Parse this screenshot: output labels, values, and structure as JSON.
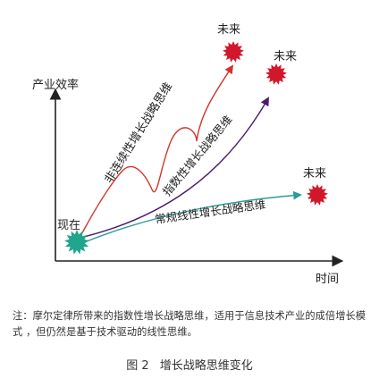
{
  "axes": {
    "y_label": "产业效率",
    "x_label": "时间"
  },
  "start_label": "现在",
  "futures": {
    "top": "未来",
    "middle": "未来",
    "bottom": "未来"
  },
  "curves": {
    "non_continuous": "非连续性增长战略思维",
    "exponential": "指数性增长战略思维",
    "linear": "常规线性增长战略思维"
  },
  "colors": {
    "non_continuous": "#d2342b",
    "exponential": "#4b1a6e",
    "linear": "#2b9a9a",
    "start_burst": "#22a58d",
    "future_burst": "#d0182a",
    "axis": "#222222"
  },
  "note": "注：摩尔定律所带来的指数性增长战略思维，适用于信息技术产业的成倍增长模式 ，但仍然是基于技术驱动的线性思维。",
  "caption": {
    "number": "图 2",
    "title": "增长战略思维变化"
  }
}
